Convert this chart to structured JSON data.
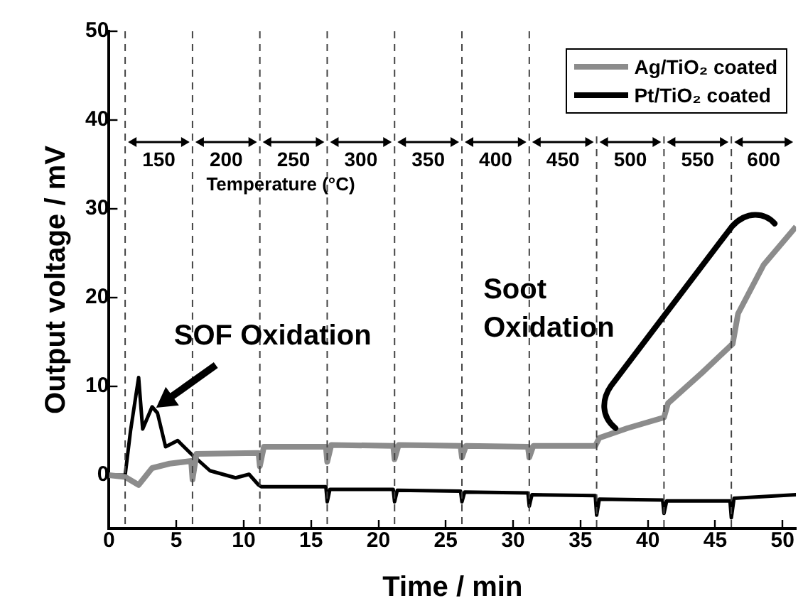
{
  "chart_data": {
    "type": "line",
    "xlabel": "Time / min",
    "ylabel": "Output voltage / mV",
    "xlim": [
      0,
      51
    ],
    "ylim": [
      -6,
      50
    ],
    "xticks": [
      0,
      5,
      10,
      15,
      20,
      25,
      30,
      35,
      40,
      45,
      50
    ],
    "yticks": [
      0,
      10,
      20,
      30,
      40,
      50
    ],
    "grid": false,
    "legend": "top right",
    "marker": "none",
    "line_style": "solid",
    "series": [
      {
        "name": "Ag/TiO₂ coated",
        "color": "#8c8c8c",
        "x": [
          0,
          1.2,
          2.2,
          3.2,
          4.5,
          6.1,
          6.2,
          6.5,
          11.1,
          11.2,
          11.5,
          16.1,
          16.2,
          16.5,
          21.1,
          21.2,
          21.5,
          26.1,
          26.2,
          26.5,
          31.1,
          31.2,
          31.5,
          36.1,
          36.4,
          38.5,
          41.2,
          41.5,
          44,
          46.3,
          46.7,
          48.6,
          51
        ],
        "values": [
          0,
          -0.2,
          -1.1,
          0.8,
          1.3,
          1.6,
          -0.5,
          2.4,
          2.5,
          1,
          3.2,
          3.2,
          1.5,
          3.4,
          3.3,
          1.8,
          3.4,
          3.3,
          2,
          3.3,
          3.2,
          2,
          3.3,
          3.3,
          4.2,
          5.3,
          6.5,
          8.1,
          11.5,
          14.8,
          18.2,
          23.7,
          28
        ]
      },
      {
        "name": "Pt/TiO₂ coated",
        "color": "#000000",
        "x": [
          0,
          1.2,
          1.6,
          2.2,
          2.5,
          3.2,
          3.6,
          4.2,
          5.1,
          6.1,
          7.5,
          9.4,
          10.4,
          11.1,
          11.3,
          16.1,
          16.2,
          16.4,
          21.1,
          21.2,
          21.4,
          26.1,
          26.2,
          26.4,
          31.1,
          31.2,
          31.4,
          36.1,
          36.2,
          36.4,
          41.1,
          41.2,
          41.4,
          46.1,
          46.2,
          46.4,
          51
        ],
        "values": [
          0,
          0,
          5,
          11,
          5.2,
          7.7,
          7,
          3.2,
          3.9,
          2.4,
          0.5,
          -0.3,
          0.1,
          -1.1,
          -1.3,
          -1.3,
          -3,
          -1.6,
          -1.6,
          -3,
          -1.7,
          -1.8,
          -3,
          -1.9,
          -2,
          -3.5,
          -2.2,
          -2.3,
          -4.5,
          -2.7,
          -2.8,
          -4.3,
          -2.9,
          -2.9,
          -4.8,
          -2.6,
          -2.2
        ]
      }
    ],
    "ref_lines": [
      {
        "axis": "x",
        "value": 1.2,
        "line_style": "dashed"
      },
      {
        "axis": "x",
        "value": 6.2,
        "line_style": "dashed"
      },
      {
        "axis": "x",
        "value": 11.2,
        "line_style": "dashed"
      },
      {
        "axis": "x",
        "value": 16.2,
        "line_style": "dashed"
      },
      {
        "axis": "x",
        "value": 21.2,
        "line_style": "dashed"
      },
      {
        "axis": "x",
        "value": 26.2,
        "line_style": "dashed"
      },
      {
        "axis": "x",
        "value": 31.2,
        "line_style": "dashed"
      },
      {
        "axis": "x",
        "value": 36.2,
        "line_style": "dashed"
      },
      {
        "axis": "x",
        "value": 41.2,
        "line_style": "dashed"
      },
      {
        "axis": "x",
        "value": 46.2,
        "line_style": "dashed"
      }
    ],
    "annotations": [
      "150",
      "200",
      "250",
      "300",
      "350",
      "400",
      "450",
      "500",
      "550",
      "600",
      "Temperature (°C)",
      {
        "text": "SOF Oxidation",
        "x": 3.5,
        "y": 7.6
      },
      {
        "text": "Soot Oxidation",
        "x": 37.6,
        "y": 5.3
      }
    ]
  }
}
